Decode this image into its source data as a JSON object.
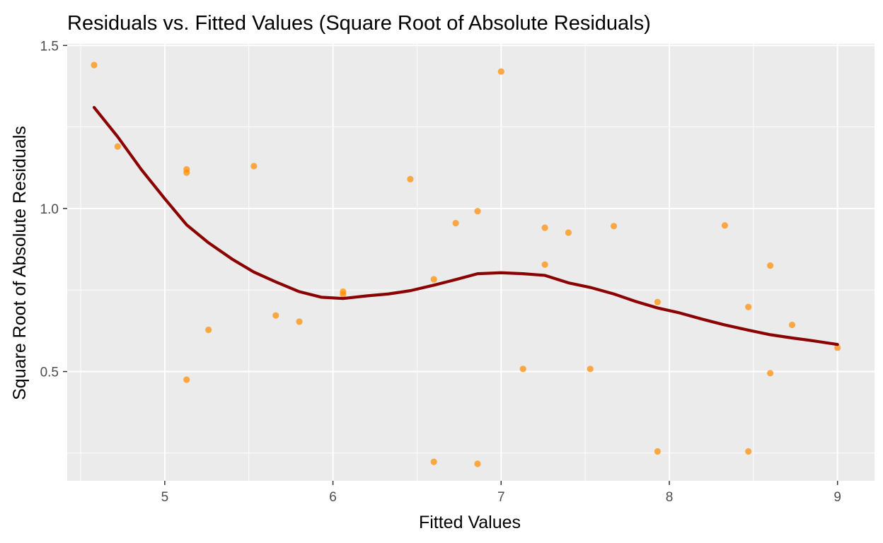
{
  "chart_data": {
    "type": "scatter",
    "title": "Residuals vs. Fitted Values (Square Root of Absolute Residuals)",
    "xlabel": "Fitted Values",
    "ylabel": "Square Root of Absolute Residuals",
    "xlim": [
      4.42,
      9.22
    ],
    "ylim": [
      0.165,
      1.505
    ],
    "x_ticks": [
      5,
      6,
      7,
      8,
      9
    ],
    "x_tick_labels": [
      "5",
      "6",
      "7",
      "8",
      "9"
    ],
    "y_ticks": [
      0.5,
      1.0,
      1.5
    ],
    "y_tick_labels": [
      "0.5",
      "1.0",
      "1.5"
    ],
    "grid": true,
    "colors": {
      "panel": "#ebebeb",
      "grid": "#ffffff",
      "points": "#ff8c00",
      "smooth_line": "#8b0000"
    },
    "points": [
      {
        "x": 4.58,
        "y": 1.44
      },
      {
        "x": 4.72,
        "y": 1.19
      },
      {
        "x": 5.13,
        "y": 1.12
      },
      {
        "x": 5.13,
        "y": 1.11
      },
      {
        "x": 5.13,
        "y": 0.475
      },
      {
        "x": 5.26,
        "y": 0.628
      },
      {
        "x": 5.53,
        "y": 1.13
      },
      {
        "x": 5.66,
        "y": 0.672
      },
      {
        "x": 5.8,
        "y": 0.653
      },
      {
        "x": 6.06,
        "y": 0.745
      },
      {
        "x": 6.06,
        "y": 0.737
      },
      {
        "x": 6.46,
        "y": 1.09
      },
      {
        "x": 6.6,
        "y": 0.783
      },
      {
        "x": 6.6,
        "y": 0.223
      },
      {
        "x": 6.73,
        "y": 0.955
      },
      {
        "x": 6.86,
        "y": 0.992
      },
      {
        "x": 6.86,
        "y": 0.217
      },
      {
        "x": 7.0,
        "y": 1.42
      },
      {
        "x": 7.13,
        "y": 0.508
      },
      {
        "x": 7.26,
        "y": 0.941
      },
      {
        "x": 7.26,
        "y": 0.828
      },
      {
        "x": 7.4,
        "y": 0.926
      },
      {
        "x": 7.53,
        "y": 0.508
      },
      {
        "x": 7.67,
        "y": 0.946
      },
      {
        "x": 7.93,
        "y": 0.713
      },
      {
        "x": 7.93,
        "y": 0.255
      },
      {
        "x": 8.33,
        "y": 0.948
      },
      {
        "x": 8.47,
        "y": 0.698
      },
      {
        "x": 8.47,
        "y": 0.255
      },
      {
        "x": 8.6,
        "y": 0.825
      },
      {
        "x": 8.6,
        "y": 0.495
      },
      {
        "x": 8.73,
        "y": 0.643
      },
      {
        "x": 9.0,
        "y": 0.573
      }
    ],
    "smooth_line": [
      {
        "x": 4.58,
        "y": 1.31
      },
      {
        "x": 4.72,
        "y": 1.22
      },
      {
        "x": 4.86,
        "y": 1.12
      },
      {
        "x": 5.0,
        "y": 1.03
      },
      {
        "x": 5.13,
        "y": 0.95
      },
      {
        "x": 5.26,
        "y": 0.895
      },
      {
        "x": 5.4,
        "y": 0.845
      },
      {
        "x": 5.53,
        "y": 0.805
      },
      {
        "x": 5.66,
        "y": 0.775
      },
      {
        "x": 5.8,
        "y": 0.745
      },
      {
        "x": 5.93,
        "y": 0.728
      },
      {
        "x": 6.06,
        "y": 0.724
      },
      {
        "x": 6.2,
        "y": 0.732
      },
      {
        "x": 6.33,
        "y": 0.738
      },
      {
        "x": 6.46,
        "y": 0.748
      },
      {
        "x": 6.6,
        "y": 0.765
      },
      {
        "x": 6.73,
        "y": 0.782
      },
      {
        "x": 6.86,
        "y": 0.8
      },
      {
        "x": 7.0,
        "y": 0.803
      },
      {
        "x": 7.13,
        "y": 0.8
      },
      {
        "x": 7.26,
        "y": 0.795
      },
      {
        "x": 7.4,
        "y": 0.772
      },
      {
        "x": 7.53,
        "y": 0.758
      },
      {
        "x": 7.67,
        "y": 0.738
      },
      {
        "x": 7.8,
        "y": 0.715
      },
      {
        "x": 7.93,
        "y": 0.695
      },
      {
        "x": 8.06,
        "y": 0.68
      },
      {
        "x": 8.2,
        "y": 0.66
      },
      {
        "x": 8.33,
        "y": 0.643
      },
      {
        "x": 8.47,
        "y": 0.627
      },
      {
        "x": 8.6,
        "y": 0.613
      },
      {
        "x": 8.73,
        "y": 0.603
      },
      {
        "x": 8.86,
        "y": 0.594
      },
      {
        "x": 9.0,
        "y": 0.583
      }
    ]
  }
}
